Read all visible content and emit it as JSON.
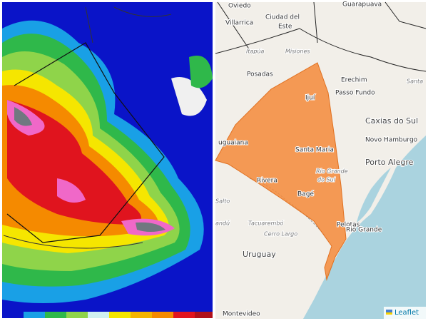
{
  "right_map": {
    "labels": [
      "Oviedo",
      "Guarapuava",
      "Villarrica",
      "Ciudad del",
      "Este",
      "Itapúa",
      "Misiones",
      "Posadas",
      "Erechim",
      "Passo Fundo",
      "Ijuí",
      "Santa",
      "Caxias do Sul",
      "Novo Hamburgo",
      "Porto Alegre",
      "Santa Maria",
      "Rio Grande",
      "do Sul",
      "uguaiana",
      "Rivera",
      "Bagé",
      "Salto",
      "andú",
      "Tacuarembó",
      "Cerro Largo",
      "Uruguay",
      "Pelotas",
      "Rio Grande",
      "Montevideo"
    ],
    "attribution": "Leaflet"
  }
}
